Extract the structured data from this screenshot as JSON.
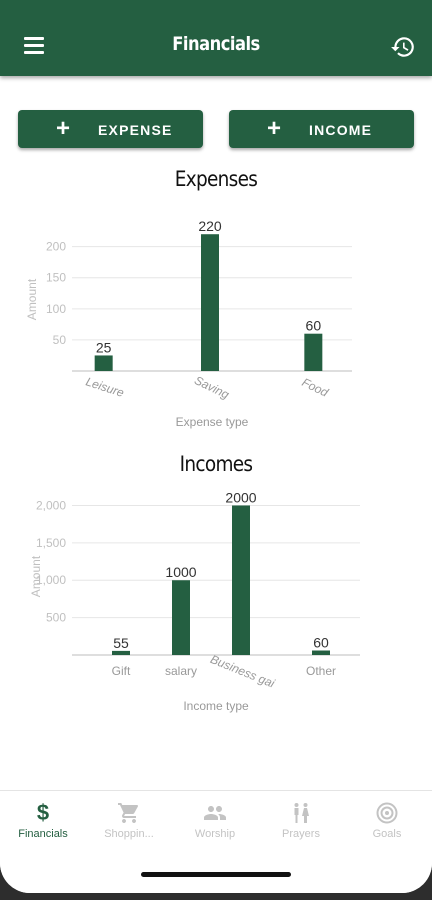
{
  "app_bar": {
    "title": "Financials",
    "menu_icon": "hamburger-menu-icon",
    "history_icon": "history-icon"
  },
  "actions": {
    "expense_label": "EXPENSE",
    "income_label": "INCOME",
    "plus_icon": "plus-icon"
  },
  "colors": {
    "primary": "#245f41",
    "inactive": "#c3c3c3",
    "grid": "#e6e6e6",
    "axis_text": "#c0c0c0"
  },
  "chart_data": [
    {
      "type": "bar",
      "title": "Expenses",
      "categories": [
        "Leisure",
        "Saving",
        "Food"
      ],
      "values": [
        25,
        220,
        60
      ],
      "data_labels": [
        "25",
        "220",
        "60"
      ],
      "xlabel": "Expense type",
      "ylabel": "Amount",
      "yticks": [
        50,
        100,
        150,
        200
      ],
      "ytick_labels": [
        "50",
        "100",
        "150",
        "200"
      ],
      "ylim": [
        0,
        230
      ],
      "grid": true
    },
    {
      "type": "bar",
      "title": "Incomes",
      "categories": [
        "Gift",
        "salary",
        "Business gai",
        "Other"
      ],
      "values": [
        55,
        1000,
        2000,
        60
      ],
      "data_labels": [
        "55",
        "1000",
        "2000",
        "60"
      ],
      "xlabel": "Income type",
      "ylabel": "Amount",
      "yticks": [
        500,
        1000,
        1500,
        2000
      ],
      "ytick_labels": [
        "500",
        "1,000",
        "1,500",
        "2,000"
      ],
      "ylim": [
        0,
        2100
      ],
      "grid": true
    }
  ],
  "bottom_nav": {
    "items": [
      {
        "label": "Financials",
        "icon": "dollar-icon",
        "active": true
      },
      {
        "label": "Shoppin...",
        "icon": "shopping-cart-icon",
        "active": false
      },
      {
        "label": "Worship",
        "icon": "people-icon",
        "active": false
      },
      {
        "label": "Prayers",
        "icon": "family-icon",
        "active": false
      },
      {
        "label": "Goals",
        "icon": "target-icon",
        "active": false
      }
    ]
  }
}
